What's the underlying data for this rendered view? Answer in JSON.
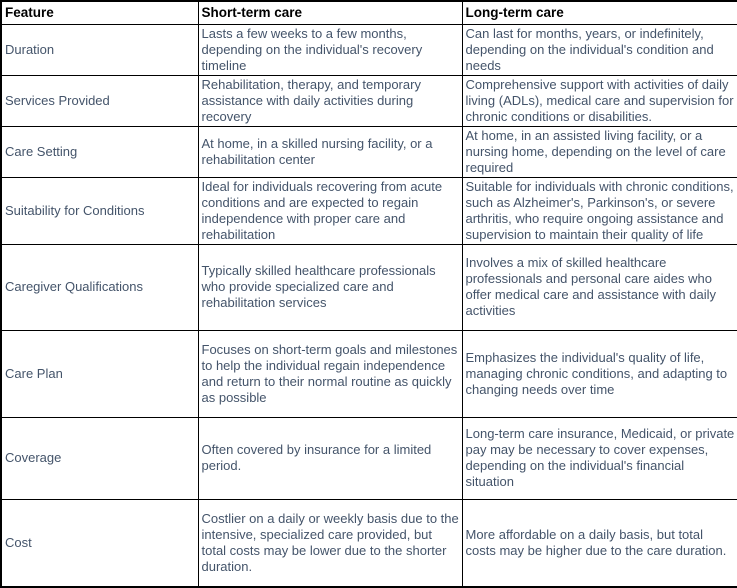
{
  "table": {
    "columns": [
      "Feature",
      "Short-term care",
      "Long-term care"
    ],
    "rows": [
      {
        "feature": "Duration",
        "short": "Lasts a few weeks to a few months, depending on the individual's recovery timeline",
        "long": "Can last for months, years, or indefinitely, depending on the individual's condition and needs"
      },
      {
        "feature": "Services Provided",
        "short": "Rehabilitation, therapy, and temporary assistance with daily activities during recovery",
        "long": "Comprehensive support with activities of daily living (ADLs), medical care and supervision for chronic conditions or disabilities."
      },
      {
        "feature": "Care Setting",
        "short": "At home, in a skilled nursing facility, or a rehabilitation center",
        "long": "At home, in an assisted living facility, or a nursing home, depending on the level of care required"
      },
      {
        "feature": "Suitability for Conditions",
        "short": "Ideal for individuals recovering from acute conditions and are expected to regain independence with proper care and rehabilitation",
        "long": "Suitable for individuals with chronic conditions, such as Alzheimer's, Parkinson's, or severe arthritis, who require ongoing assistance and supervision to maintain their quality of life"
      },
      {
        "feature": "Caregiver Qualifications",
        "short": "Typically skilled healthcare professionals who provide specialized care and rehabilitation services",
        "long": "Involves a mix of skilled healthcare professionals and personal care aides who offer medical care and assistance with daily activities"
      },
      {
        "feature": "Care Plan",
        "short": "Focuses on short-term goals and milestones to help the individual regain independence and return to their normal routine as quickly as possible",
        "long": "Emphasizes the individual's quality of life, managing chronic conditions, and adapting to changing needs over time"
      },
      {
        "feature": "Coverage",
        "short": "Often covered by insurance for a limited period.",
        "long": "Long-term care insurance, Medicaid, or private pay may be necessary to cover expenses, depending on the individual's financial situation"
      },
      {
        "feature": "Cost",
        "short": "Costlier on a daily or weekly basis due to the intensive, specialized care provided, but total costs may be lower due to the shorter duration.",
        "long": "More affordable on a daily basis, but total costs may be higher due to the care duration."
      }
    ]
  },
  "colors": {
    "border": "#000000",
    "header_text": "#000000",
    "body_text": "#44546A",
    "background": "#FFFFFF"
  }
}
